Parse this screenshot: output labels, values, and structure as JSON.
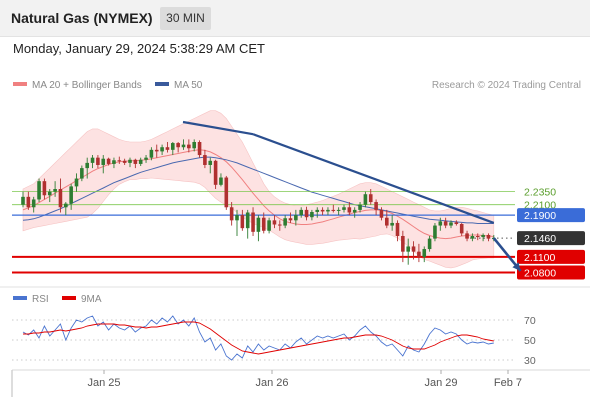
{
  "header": {
    "title": "Natural Gas (NYMEX)",
    "timeframe": "30 MIN"
  },
  "timestamp": "Monday, January 29, 2024 5:38:29 AM CET",
  "legend": {
    "items": [
      {
        "label": "MA 20 + Bollinger Bands",
        "color": "#f08080"
      },
      {
        "label": "MA 50",
        "color": "#3a5a9c"
      }
    ],
    "copyright": "Research © 2024 Trading Central"
  },
  "colors": {
    "candle_up": "#2e7d32",
    "candle_down": "#b03030",
    "bollinger_fill": "#fde2e2",
    "ma20": "#f08080",
    "ma50": "#4a69b0",
    "trendline": "#2b4f8f",
    "support": "#e00000",
    "resistance": "#7ec850",
    "pivot": "#3a6cd8",
    "last_price": "#333333",
    "rsi": "#4a74d0",
    "rsi_ma": "#e00000"
  },
  "chart_data": [
    {
      "type": "candlestick",
      "title": "Natural Gas (NYMEX)",
      "timeframe": "30 MIN",
      "x_ticks": [
        "Jan 25",
        "Jan 26",
        "Jan 29",
        "Feb 7"
      ],
      "ylim": [
        2.06,
        2.42
      ],
      "levels": [
        {
          "label": "2.2350",
          "value": 2.235,
          "kind": "resistance"
        },
        {
          "label": "2.2100",
          "value": 2.21,
          "kind": "resistance"
        },
        {
          "label": "2.1900",
          "value": 2.19,
          "kind": "pivot"
        },
        {
          "label": "2.1460",
          "value": 2.146,
          "kind": "last"
        },
        {
          "label": "2.1100",
          "value": 2.11,
          "kind": "support"
        },
        {
          "label": "2.0800",
          "value": 2.08,
          "kind": "support"
        }
      ],
      "ohlc": [
        [
          2.21,
          2.235,
          2.205,
          2.225
        ],
        [
          2.225,
          2.235,
          2.2,
          2.205
        ],
        [
          2.205,
          2.225,
          2.195,
          2.22
        ],
        [
          2.22,
          2.26,
          2.215,
          2.255
        ],
        [
          2.255,
          2.26,
          2.22,
          2.228
        ],
        [
          2.228,
          2.24,
          2.215,
          2.235
        ],
        [
          2.235,
          2.255,
          2.225,
          2.24
        ],
        [
          2.24,
          2.26,
          2.195,
          2.205
        ],
        [
          2.205,
          2.215,
          2.19,
          2.212
        ],
        [
          2.212,
          2.25,
          2.2,
          2.245
        ],
        [
          2.245,
          2.27,
          2.235,
          2.26
        ],
        [
          2.26,
          2.285,
          2.255,
          2.28
        ],
        [
          2.28,
          2.3,
          2.26,
          2.29
        ],
        [
          2.29,
          2.305,
          2.28,
          2.3
        ],
        [
          2.3,
          2.305,
          2.28,
          2.286
        ],
        [
          2.286,
          2.305,
          2.27,
          2.298
        ],
        [
          2.298,
          2.3,
          2.285,
          2.288
        ],
        [
          2.288,
          2.3,
          2.28,
          2.295
        ],
        [
          2.295,
          2.302,
          2.288,
          2.294
        ],
        [
          2.294,
          2.298,
          2.286,
          2.29
        ],
        [
          2.29,
          2.3,
          2.282,
          2.296
        ],
        [
          2.296,
          2.298,
          2.28,
          2.288
        ],
        [
          2.288,
          2.3,
          2.284,
          2.296
        ],
        [
          2.296,
          2.305,
          2.29,
          2.3
        ],
        [
          2.3,
          2.32,
          2.295,
          2.315
        ],
        [
          2.315,
          2.325,
          2.3,
          2.312
        ],
        [
          2.312,
          2.325,
          2.305,
          2.32
        ],
        [
          2.32,
          2.33,
          2.31,
          2.315
        ],
        [
          2.315,
          2.33,
          2.305,
          2.328
        ],
        [
          2.328,
          2.33,
          2.31,
          2.32
        ],
        [
          2.32,
          2.335,
          2.315,
          2.325
        ],
        [
          2.325,
          2.335,
          2.31,
          2.318
        ],
        [
          2.318,
          2.335,
          2.312,
          2.33
        ],
        [
          2.33,
          2.333,
          2.3,
          2.305
        ],
        [
          2.305,
          2.315,
          2.28,
          2.286
        ],
        [
          2.286,
          2.3,
          2.27,
          2.294
        ],
        [
          2.294,
          2.296,
          2.24,
          2.248
        ],
        [
          2.248,
          2.27,
          2.245,
          2.262
        ],
        [
          2.262,
          2.265,
          2.2,
          2.205
        ],
        [
          2.205,
          2.215,
          2.17,
          2.18
        ],
        [
          2.18,
          2.2,
          2.15,
          2.19
        ],
        [
          2.19,
          2.2,
          2.16,
          2.165
        ],
        [
          2.165,
          2.2,
          2.145,
          2.195
        ],
        [
          2.195,
          2.205,
          2.15,
          2.158
        ],
        [
          2.158,
          2.19,
          2.14,
          2.185
        ],
        [
          2.185,
          2.195,
          2.155,
          2.16
        ],
        [
          2.16,
          2.185,
          2.155,
          2.18
        ],
        [
          2.18,
          2.19,
          2.165,
          2.172
        ],
        [
          2.172,
          2.18,
          2.16,
          2.17
        ],
        [
          2.17,
          2.19,
          2.165,
          2.184
        ],
        [
          2.184,
          2.195,
          2.175,
          2.18
        ],
        [
          2.18,
          2.2,
          2.17,
          2.19
        ],
        [
          2.19,
          2.205,
          2.185,
          2.2
        ],
        [
          2.2,
          2.206,
          2.18,
          2.186
        ],
        [
          2.186,
          2.2,
          2.18,
          2.196
        ],
        [
          2.196,
          2.205,
          2.185,
          2.2
        ],
        [
          2.2,
          2.205,
          2.19,
          2.197
        ],
        [
          2.197,
          2.205,
          2.19,
          2.2
        ],
        [
          2.2,
          2.21,
          2.195,
          2.198
        ],
        [
          2.198,
          2.205,
          2.19,
          2.2
        ],
        [
          2.2,
          2.21,
          2.195,
          2.205
        ],
        [
          2.205,
          2.215,
          2.19,
          2.195
        ],
        [
          2.195,
          2.205,
          2.185,
          2.2
        ],
        [
          2.2,
          2.215,
          2.195,
          2.21
        ],
        [
          2.21,
          2.235,
          2.205,
          2.23
        ],
        [
          2.23,
          2.24,
          2.21,
          2.215
        ],
        [
          2.215,
          2.22,
          2.19,
          2.2
        ],
        [
          2.2,
          2.205,
          2.18,
          2.185
        ],
        [
          2.185,
          2.2,
          2.165,
          2.17
        ],
        [
          2.17,
          2.19,
          2.16,
          2.175
        ],
        [
          2.175,
          2.18,
          2.14,
          2.15
        ],
        [
          2.15,
          2.16,
          2.1,
          2.12
        ],
        [
          2.12,
          2.145,
          2.095,
          2.13
        ],
        [
          2.13,
          2.14,
          2.105,
          2.12
        ],
        [
          2.12,
          2.135,
          2.1,
          2.11
        ],
        [
          2.11,
          2.13,
          2.1,
          2.125
        ],
        [
          2.125,
          2.15,
          2.12,
          2.145
        ],
        [
          2.145,
          2.175,
          2.14,
          2.17
        ],
        [
          2.17,
          2.185,
          2.16,
          2.178
        ],
        [
          2.178,
          2.185,
          2.165,
          2.17
        ],
        [
          2.17,
          2.18,
          2.165,
          2.176
        ],
        [
          2.176,
          2.18,
          2.17,
          2.173
        ],
        [
          2.173,
          2.175,
          2.15,
          2.155
        ],
        [
          2.155,
          2.16,
          2.14,
          2.145
        ],
        [
          2.145,
          2.155,
          2.14,
          2.15
        ],
        [
          2.15,
          2.155,
          2.142,
          2.148
        ],
        [
          2.148,
          2.155,
          2.14,
          2.152
        ],
        [
          2.152,
          2.155,
          2.14,
          2.145
        ],
        [
          2.145,
          2.152,
          2.14,
          2.146
        ]
      ],
      "ma20": [
        2.2,
        2.204,
        2.208,
        2.214,
        2.22,
        2.226,
        2.232,
        2.238,
        2.244,
        2.25,
        2.256,
        2.262,
        2.268,
        2.274,
        2.279,
        2.283,
        2.287,
        2.29,
        2.292,
        2.293,
        2.294,
        2.294,
        2.295,
        2.296,
        2.298,
        2.3,
        2.302,
        2.304,
        2.306,
        2.308,
        2.31,
        2.312,
        2.314,
        2.315,
        2.314,
        2.311,
        2.306,
        2.3,
        2.292,
        2.282,
        2.27,
        2.258,
        2.245,
        2.232,
        2.22,
        2.208,
        2.198,
        2.19,
        2.183,
        2.178,
        2.175,
        2.173,
        2.172,
        2.172,
        2.173,
        2.175,
        2.177,
        2.18,
        2.183,
        2.186,
        2.189,
        2.192,
        2.195,
        2.197,
        2.199,
        2.2,
        2.2,
        2.199,
        2.197,
        2.193,
        2.188,
        2.182,
        2.175,
        2.168,
        2.161,
        2.155,
        2.151,
        2.148,
        2.146,
        2.145,
        2.146,
        2.148,
        2.15,
        2.151,
        2.152,
        2.152,
        2.151,
        2.15,
        2.149
      ],
      "bb_upper": [
        2.24,
        2.245,
        2.25,
        2.26,
        2.27,
        2.28,
        2.29,
        2.3,
        2.31,
        2.32,
        2.33,
        2.34,
        2.35,
        2.355,
        2.355,
        2.35,
        2.345,
        2.34,
        2.335,
        2.332,
        2.33,
        2.33,
        2.33,
        2.332,
        2.335,
        2.34,
        2.345,
        2.35,
        2.355,
        2.36,
        2.365,
        2.37,
        2.375,
        2.38,
        2.385,
        2.39,
        2.39,
        2.385,
        2.375,
        2.36,
        2.345,
        2.33,
        2.31,
        2.29,
        2.27,
        2.25,
        2.235,
        2.225,
        2.218,
        2.213,
        2.21,
        2.208,
        2.208,
        2.21,
        2.212,
        2.215,
        2.218,
        2.222,
        2.226,
        2.23,
        2.235,
        2.24,
        2.245,
        2.25,
        2.252,
        2.252,
        2.25,
        2.245,
        2.24,
        2.235,
        2.23,
        2.225,
        2.22,
        2.215,
        2.21,
        2.205,
        2.2,
        2.198,
        2.198,
        2.2,
        2.203,
        2.205,
        2.205,
        2.203,
        2.2,
        2.198,
        2.195,
        2.192,
        2.19
      ],
      "bb_lower": [
        2.16,
        2.163,
        2.166,
        2.168,
        2.17,
        2.172,
        2.174,
        2.176,
        2.178,
        2.18,
        2.182,
        2.184,
        2.186,
        2.193,
        2.203,
        2.216,
        2.229,
        2.24,
        2.249,
        2.254,
        2.258,
        2.258,
        2.26,
        2.26,
        2.261,
        2.26,
        2.259,
        2.258,
        2.257,
        2.256,
        2.255,
        2.254,
        2.253,
        2.25,
        2.243,
        2.232,
        2.222,
        2.215,
        2.209,
        2.204,
        2.195,
        2.186,
        2.18,
        2.174,
        2.17,
        2.166,
        2.161,
        2.155,
        2.148,
        2.143,
        2.14,
        2.138,
        2.136,
        2.134,
        2.134,
        2.135,
        2.136,
        2.138,
        2.14,
        2.142,
        2.143,
        2.144,
        2.145,
        2.144,
        2.146,
        2.148,
        2.15,
        2.153,
        2.154,
        2.151,
        2.146,
        2.139,
        2.13,
        2.121,
        2.112,
        2.105,
        2.102,
        2.098,
        2.094,
        2.09,
        2.089,
        2.091,
        2.095,
        2.099,
        2.104,
        2.106,
        2.107,
        2.108,
        2.108
      ],
      "ma50": [
        2.18,
        2.181,
        2.183,
        2.186,
        2.19,
        2.194,
        2.198,
        2.202,
        2.207,
        2.212,
        2.217,
        2.222,
        2.227,
        2.232,
        2.237,
        2.242,
        2.247,
        2.252,
        2.256,
        2.26,
        2.264,
        2.268,
        2.272,
        2.275,
        2.278,
        2.281,
        2.284,
        2.287,
        2.29,
        2.292,
        2.294,
        2.296,
        2.298,
        2.3,
        2.301,
        2.301,
        2.3,
        2.298,
        2.296,
        2.293,
        2.29,
        2.286,
        2.282,
        2.278,
        2.274,
        2.27,
        2.266,
        2.262,
        2.258,
        2.254,
        2.25,
        2.246,
        2.242,
        2.238,
        2.234,
        2.231,
        2.228,
        2.225,
        2.222,
        2.219,
        2.216,
        2.213,
        2.21,
        2.208,
        2.206,
        2.204,
        2.202,
        2.2,
        2.198,
        2.196,
        2.194,
        2.192,
        2.19,
        2.188,
        2.186,
        2.184,
        2.182,
        2.181,
        2.18,
        2.179,
        2.178,
        2.177,
        2.176,
        2.175,
        2.175,
        2.174,
        2.174,
        2.174,
        2.174
      ],
      "trendline": {
        "from_bar": 43,
        "from_value": 2.345,
        "to_bar": 88,
        "to_value": 2.175
      },
      "projection": {
        "from_bar": 88,
        "from_value": 2.146,
        "to_bar": 93,
        "to_value": 2.083
      }
    },
    {
      "type": "line",
      "title": "RSI",
      "series": [
        {
          "name": "RSI",
          "values": [
            58,
            55,
            60,
            52,
            64,
            54,
            60,
            66,
            50,
            62,
            70,
            68,
            72,
            74,
            64,
            68,
            60,
            66,
            62,
            60,
            64,
            58,
            62,
            64,
            70,
            66,
            72,
            68,
            74,
            66,
            70,
            64,
            72,
            58,
            48,
            52,
            40,
            46,
            34,
            30,
            36,
            32,
            44,
            38,
            46,
            40,
            44,
            42,
            40,
            46,
            42,
            48,
            52,
            46,
            50,
            54,
            52,
            54,
            52,
            54,
            56,
            50,
            54,
            60,
            64,
            58,
            54,
            48,
            44,
            46,
            40,
            34,
            44,
            40,
            38,
            46,
            56,
            62,
            60,
            56,
            58,
            56,
            50,
            46,
            48,
            47,
            48,
            46,
            47
          ]
        },
        {
          "name": "9MA",
          "values": [
            56,
            56,
            57,
            57,
            58,
            58,
            59,
            60,
            59,
            60,
            61,
            62,
            64,
            65,
            66,
            66,
            66,
            66,
            65,
            65,
            64,
            63,
            63,
            62,
            63,
            63,
            64,
            65,
            66,
            67,
            68,
            68,
            68,
            67,
            64,
            61,
            57,
            53,
            49,
            45,
            42,
            39,
            38,
            37,
            36,
            37,
            38,
            39,
            40,
            41,
            42,
            43,
            44,
            45,
            46,
            47,
            48,
            49,
            50,
            51,
            52,
            52,
            53,
            54,
            55,
            55,
            55,
            54,
            52,
            50,
            47,
            44,
            42,
            41,
            41,
            41,
            43,
            45,
            48,
            50,
            52,
            54,
            55,
            55,
            54,
            53,
            51,
            50,
            49
          ]
        }
      ],
      "ylim": [
        20,
        80
      ],
      "y_ticks": [
        70,
        50,
        30
      ]
    }
  ]
}
